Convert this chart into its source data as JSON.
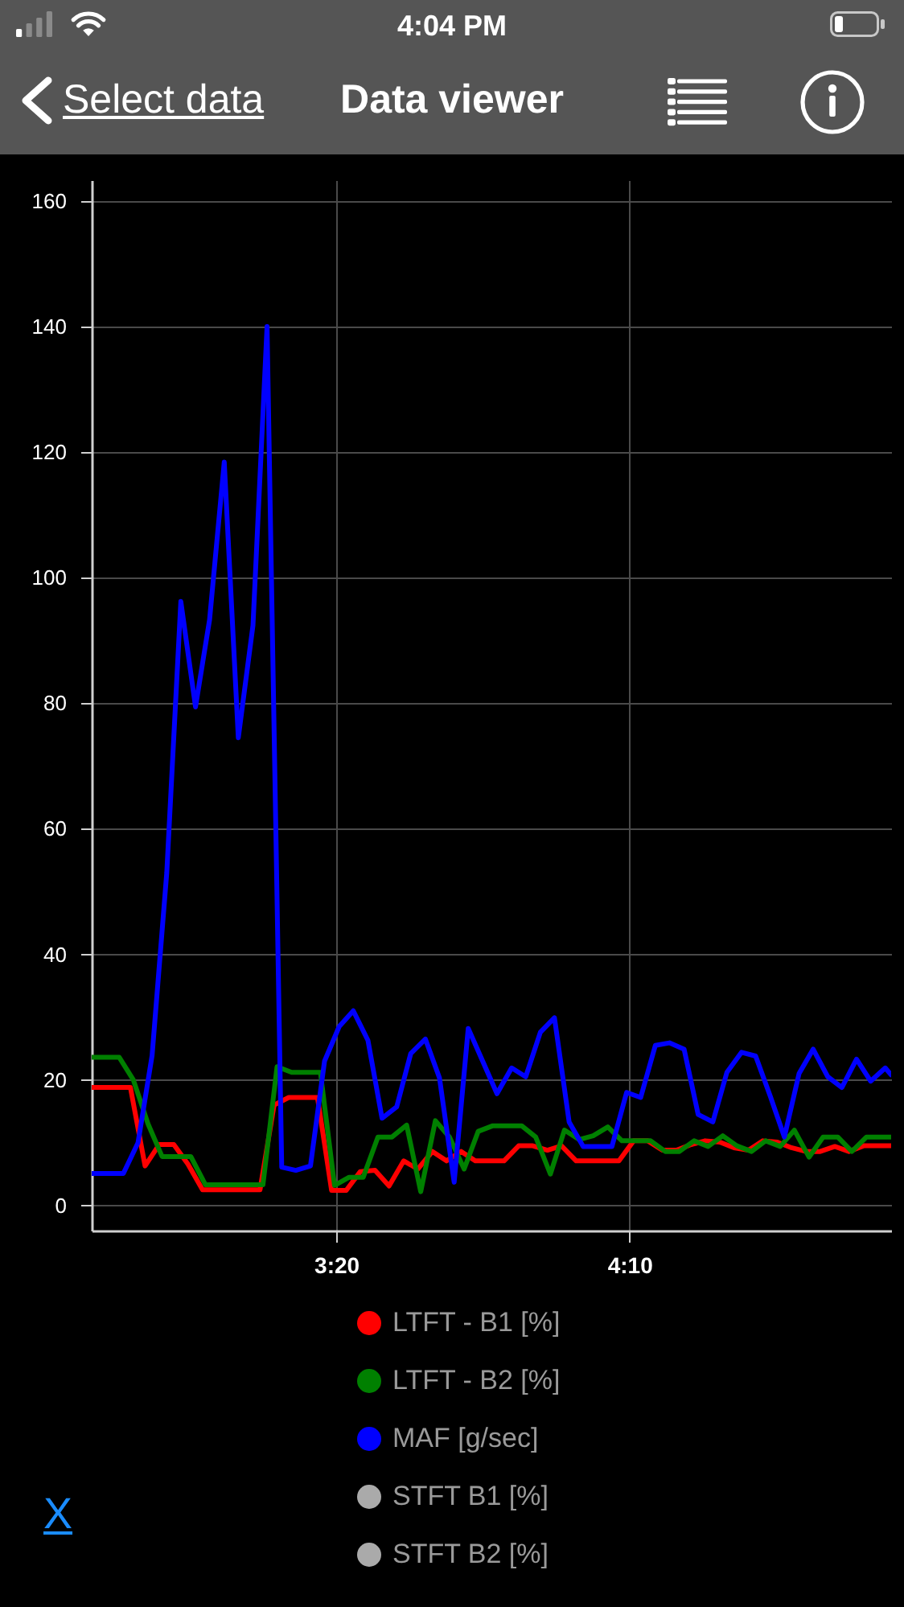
{
  "chart_data": {
    "type": "line",
    "title": "Data viewer",
    "annotations": [
      "4:04 PM",
      "Select data",
      "X"
    ],
    "xlim": [
      158.3,
      294.6
    ],
    "xticks": [
      {
        "value": 200,
        "label": "3:20"
      },
      {
        "value": 250,
        "label": "4:10"
      }
    ],
    "ylim": [
      -4,
      163.3
    ],
    "yticks": [
      0,
      20,
      40,
      60,
      80,
      100,
      120,
      140,
      160
    ],
    "grid": true,
    "legend": "bottom",
    "series": [
      {
        "name": "LTFT - B1 [%]",
        "color": "#ff0000",
        "x": [
          158.3,
          160.0,
          162.5,
          164.9,
          167.4,
          169.8,
          172.3,
          174.7,
          177.2,
          179.6,
          182.1,
          184.5,
          187.0,
          189.4,
          191.9,
          194.3,
          196.8,
          199.2,
          201.7,
          204.1,
          206.6,
          209.0,
          211.5,
          213.9,
          216.4,
          218.8,
          221.3,
          223.7,
          226.2,
          228.6,
          231.1,
          233.5,
          236.0,
          238.4,
          240.9,
          243.3,
          245.8,
          248.2,
          250.7,
          253.1,
          255.6,
          258.0,
          260.5,
          262.9,
          265.4,
          267.8,
          270.3,
          272.7,
          275.2,
          277.6,
          280.1,
          282.5,
          285.0,
          287.4,
          289.9,
          292.3,
          294.6
        ],
        "values": [
          18.8,
          18.8,
          18.8,
          18.8,
          6.3,
          9.7,
          9.7,
          6.6,
          2.5,
          2.5,
          2.5,
          2.5,
          2.5,
          16.0,
          17.2,
          17.2,
          17.2,
          2.4,
          2.4,
          5.4,
          5.6,
          3.1,
          7.1,
          5.8,
          8.6,
          7.1,
          8.6,
          7.1,
          7.1,
          7.1,
          9.5,
          9.5,
          8.8,
          9.5,
          7.1,
          7.1,
          7.1,
          7.1,
          10.3,
          10.3,
          8.8,
          8.8,
          9.7,
          10.3,
          10.1,
          9.2,
          8.8,
          10.3,
          10.1,
          9.2,
          8.6,
          8.6,
          9.4,
          8.6,
          9.5,
          9.5,
          9.5
        ]
      },
      {
        "name": "LTFT - B2 [%]",
        "color": "#008000",
        "x": [
          158.3,
          160.5,
          163.0,
          165.4,
          167.9,
          170.3,
          172.8,
          175.2,
          177.7,
          180.1,
          182.6,
          185.0,
          187.5,
          189.9,
          192.4,
          194.8,
          197.3,
          199.7,
          202.2,
          204.6,
          207.1,
          209.5,
          212.0,
          214.4,
          216.9,
          219.3,
          221.8,
          224.2,
          226.7,
          229.1,
          231.6,
          234.0,
          236.5,
          238.9,
          241.4,
          243.8,
          246.3,
          248.7,
          251.2,
          253.6,
          256.1,
          258.5,
          261.0,
          263.4,
          265.9,
          268.3,
          270.8,
          273.2,
          275.7,
          278.1,
          280.6,
          283.0,
          285.5,
          287.9,
          290.4,
          292.8,
          294.6
        ],
        "values": [
          23.6,
          23.6,
          23.6,
          20.0,
          13.0,
          7.8,
          7.8,
          7.8,
          3.3,
          3.3,
          3.3,
          3.3,
          3.3,
          22.1,
          21.2,
          21.2,
          21.2,
          3.2,
          4.5,
          4.5,
          10.9,
          10.9,
          12.8,
          2.2,
          13.5,
          10.9,
          5.8,
          11.8,
          12.7,
          12.7,
          12.7,
          10.9,
          5.0,
          12.0,
          10.5,
          11.1,
          12.5,
          10.3,
          10.3,
          10.3,
          8.6,
          8.6,
          10.3,
          9.4,
          11.1,
          9.5,
          8.6,
          10.3,
          9.4,
          12.0,
          7.7,
          10.9,
          10.9,
          8.6,
          10.9,
          10.9,
          10.9
        ]
      },
      {
        "name": "MAF [g/sec]",
        "color": "#0000ff",
        "x": [
          158.3,
          161.3,
          163.7,
          166.2,
          168.6,
          171.1,
          173.5,
          176.0,
          178.4,
          180.9,
          183.3,
          185.8,
          188.2,
          190.7,
          193.1,
          195.6,
          198.0,
          200.5,
          202.9,
          205.4,
          207.8,
          210.3,
          212.7,
          215.2,
          217.6,
          220.1,
          222.5,
          225.0,
          227.4,
          229.9,
          232.3,
          234.8,
          237.2,
          239.7,
          242.1,
          244.6,
          247.0,
          249.5,
          251.9,
          254.4,
          256.8,
          259.3,
          261.7,
          264.2,
          266.6,
          269.1,
          271.5,
          274.0,
          276.4,
          278.9,
          281.3,
          283.8,
          286.2,
          288.7,
          291.1,
          293.6,
          294.6
        ],
        "values": [
          5.1,
          5.1,
          5.1,
          10.0,
          23.9,
          53.0,
          96.2,
          79.4,
          93.3,
          118.4,
          74.5,
          92.4,
          140,
          6.1,
          5.6,
          6.3,
          23.0,
          28.5,
          31.0,
          26.3,
          13.9,
          15.7,
          24.2,
          26.5,
          20.3,
          3.7,
          28.2,
          22.9,
          17.8,
          21.9,
          20.5,
          27.6,
          29.9,
          13.3,
          9.4,
          9.4,
          9.4,
          18.0,
          17.2,
          25.5,
          25.9,
          24.9,
          14.5,
          13.3,
          21.2,
          24.4,
          23.8,
          17.4,
          10.9,
          21.0,
          24.9,
          20.5,
          18.8,
          23.3,
          19.8,
          21.9,
          20.8
        ]
      },
      {
        "name": "STFT B1 [%]",
        "color": "#aaaaaa"
      },
      {
        "name": "STFT B2 [%]",
        "color": "#aaaaaa"
      }
    ]
  }
}
